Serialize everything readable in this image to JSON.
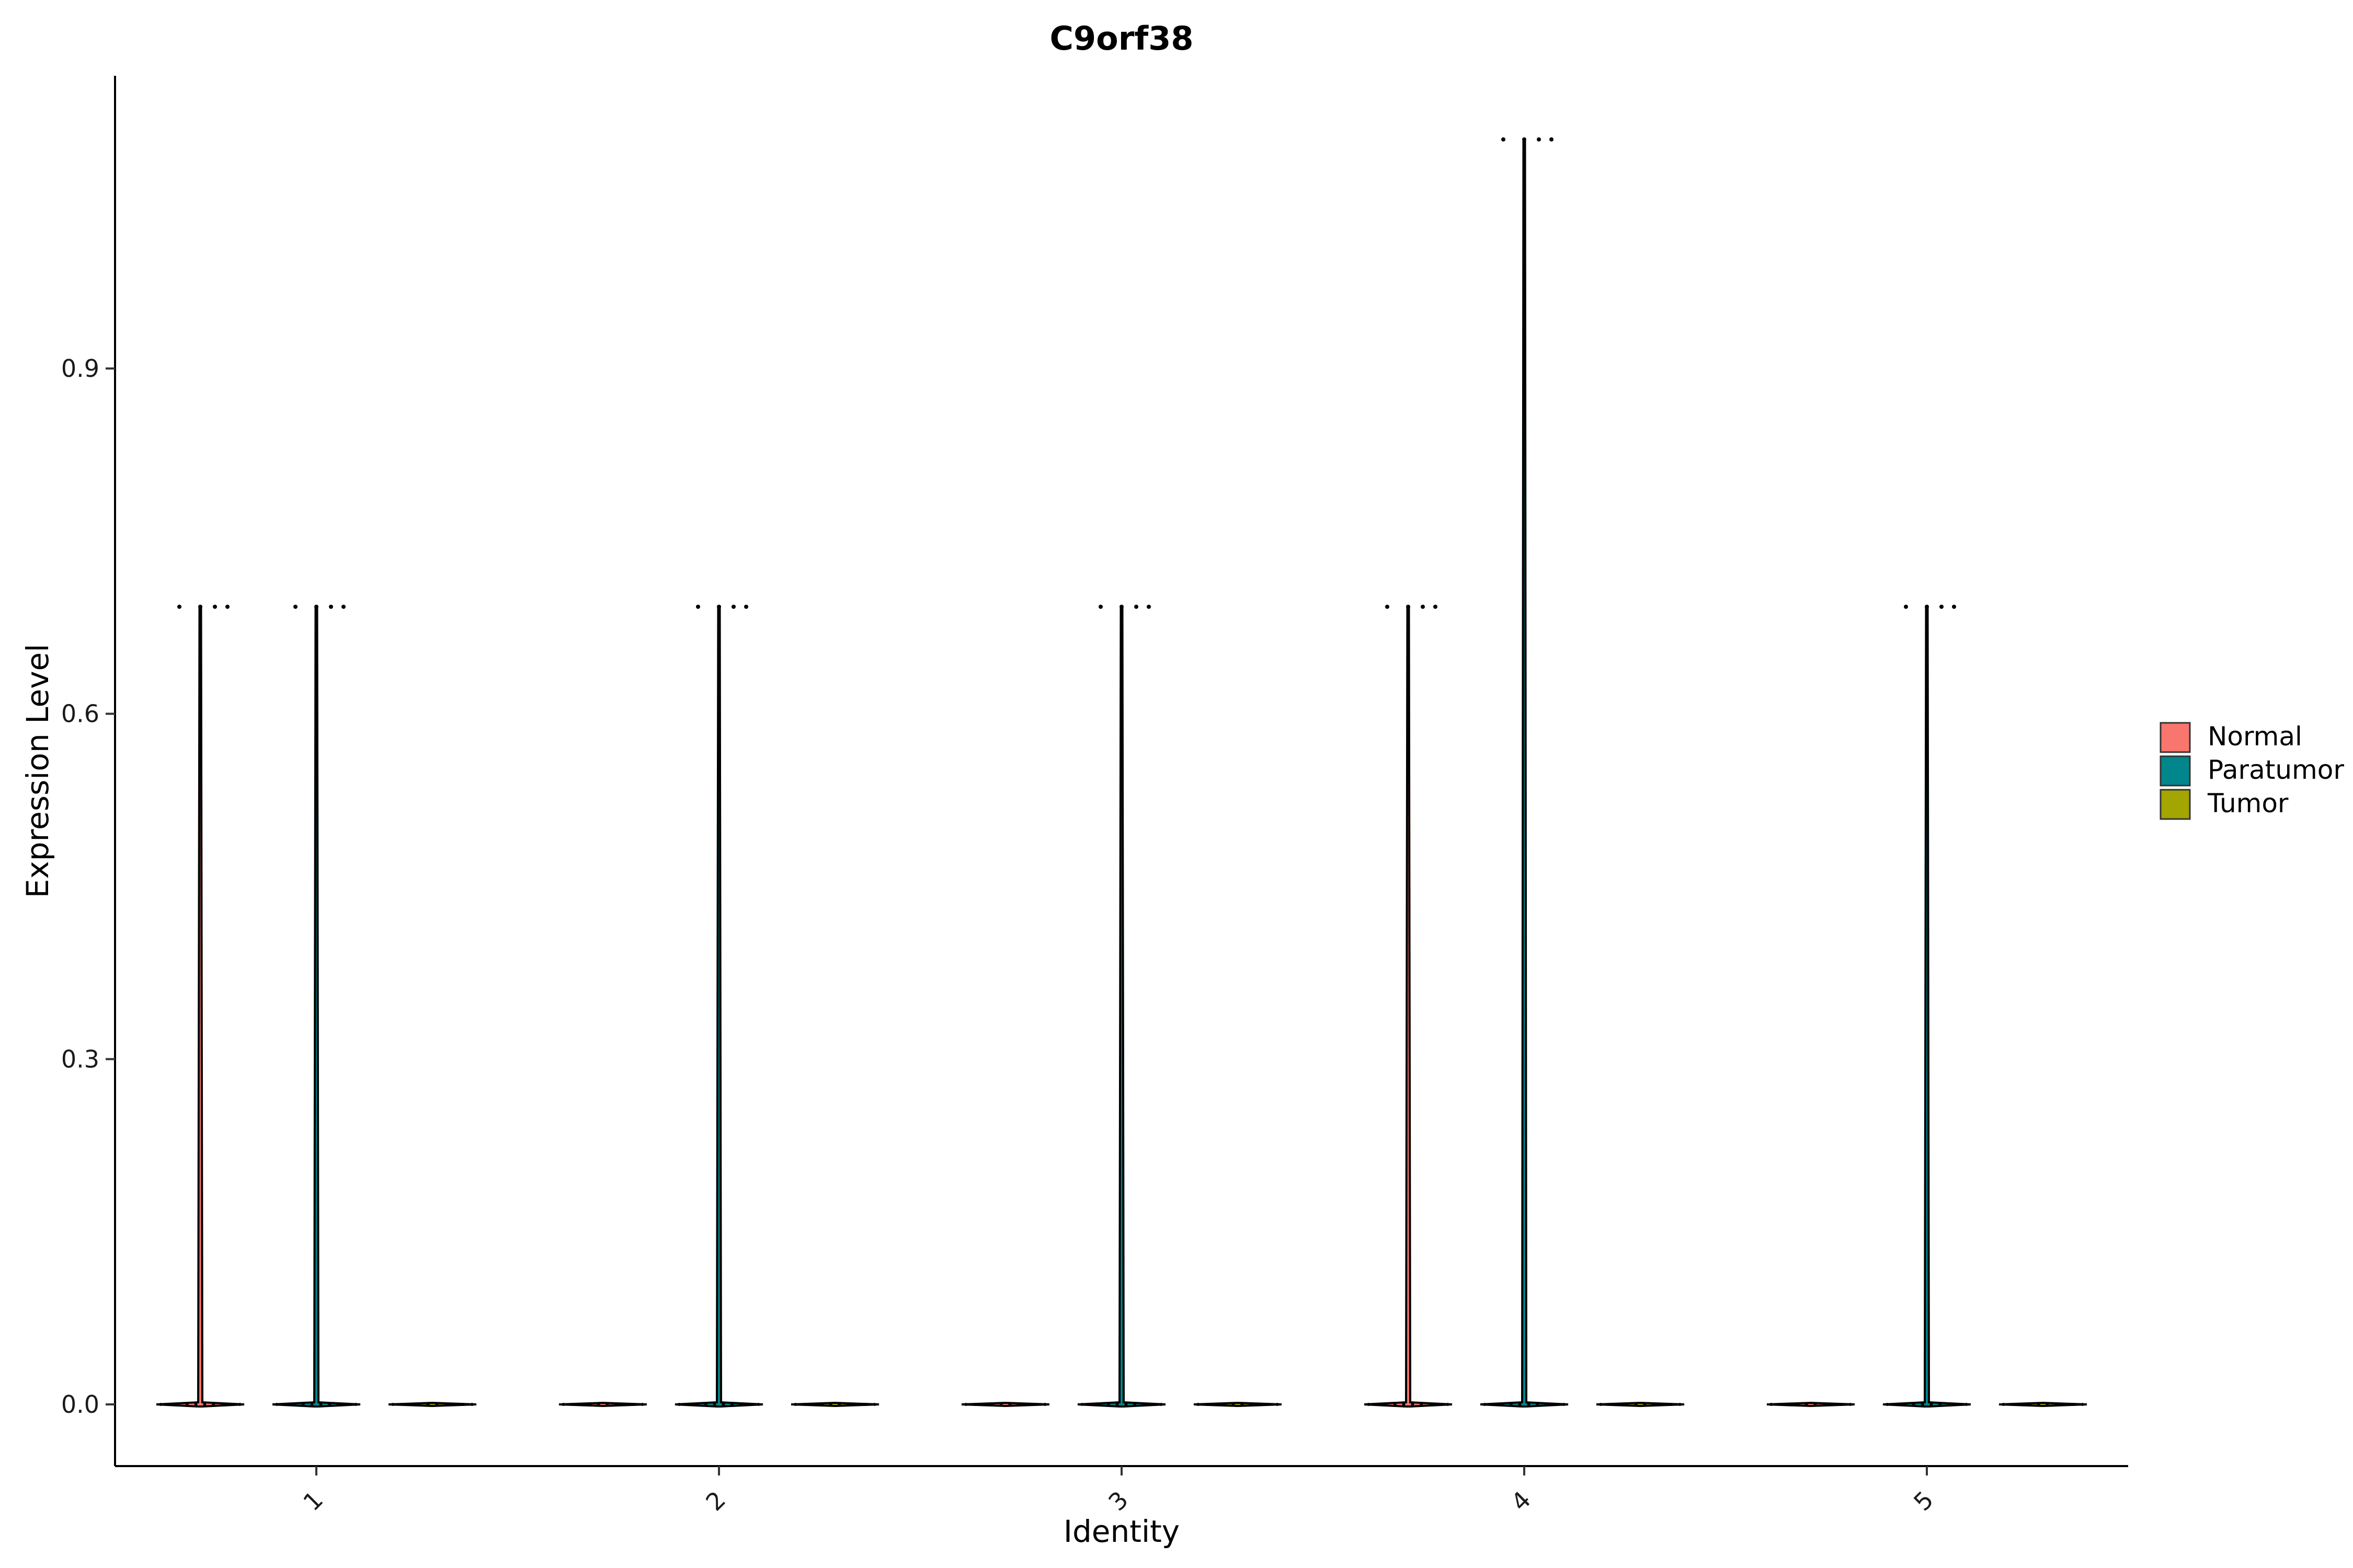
{
  "chart_data": {
    "type": "violin",
    "title": "C9orf38",
    "xlabel": "Identity",
    "ylabel": "Expression Level",
    "categories": [
      "1",
      "2",
      "3",
      "4",
      "5"
    ],
    "ylim": [
      -0.055,
      1.15
    ],
    "yticks": [
      "0.0",
      "0.3",
      "0.6",
      "0.9"
    ],
    "ytick_values": [
      0.0,
      0.3,
      0.6,
      0.9
    ],
    "grid": false,
    "legend_position": "right",
    "series": [
      {
        "name": "Normal",
        "color": "#F8766D",
        "max": [
          0.693,
          0.0,
          0.0,
          0.693,
          0.0
        ]
      },
      {
        "name": "Paratumor",
        "color": "#00868B",
        "max": [
          0.693,
          0.693,
          0.693,
          1.099,
          0.693
        ]
      },
      {
        "name": "Tumor",
        "color": "#A3A500",
        "max": [
          0.0,
          0.0,
          0.0,
          0.0,
          0.0
        ]
      }
    ]
  }
}
